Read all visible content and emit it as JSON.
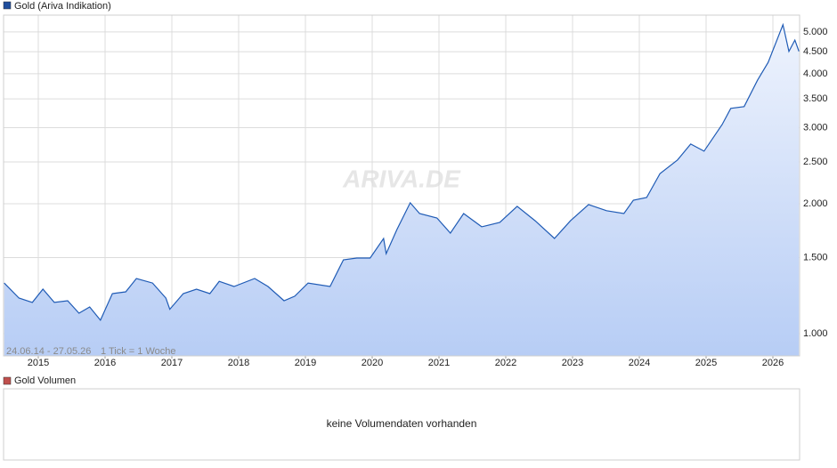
{
  "chart_data": {
    "type": "line",
    "log_scale": true,
    "grid": true,
    "legend": "Gold (Ariva Indikation)",
    "legend_color": "#1f4e9c",
    "watermark": "ARIVA.DE",
    "range_note": "24.06.14 - 27.05.26",
    "tick_note": "1 Tick = 1 Woche",
    "x": [
      2014.49,
      2014.71,
      2014.91,
      2015.07,
      2015.24,
      2015.44,
      2015.61,
      2015.77,
      2015.93,
      2016.11,
      2016.31,
      2016.47,
      2016.71,
      2016.91,
      2016.97,
      2017.17,
      2017.37,
      2017.57,
      2017.71,
      2017.93,
      2018.24,
      2018.44,
      2018.68,
      2018.84,
      2019.04,
      2019.37,
      2019.57,
      2019.77,
      2019.97,
      2020.17,
      2020.21,
      2020.37,
      2020.57,
      2020.71,
      2020.97,
      2021.17,
      2021.37,
      2021.64,
      2021.91,
      2022.17,
      2022.44,
      2022.73,
      2022.97,
      2023.24,
      2023.51,
      2023.77,
      2023.91,
      2024.11,
      2024.31,
      2024.57,
      2024.77,
      2024.97,
      2025.24,
      2025.37,
      2025.57,
      2025.77,
      2025.93,
      2026.15,
      2026.24,
      2026.33,
      2026.39
    ],
    "series": [
      {
        "name": "Gold",
        "color": "#1f5bb5",
        "values": [
          1310,
          1209,
          1181,
          1268,
          1181,
          1192,
          1115,
          1153,
          1074,
          1238,
          1250,
          1342,
          1310,
          1209,
          1139,
          1238,
          1268,
          1238,
          1322,
          1286,
          1342,
          1286,
          1192,
          1221,
          1310,
          1286,
          1483,
          1497,
          1497,
          1662,
          1532,
          1742,
          2010,
          1898,
          1853,
          1710,
          1898,
          1768,
          1810,
          1972,
          1826,
          1662,
          1826,
          1991,
          1927,
          1898,
          2038,
          2067,
          2349,
          2523,
          2750,
          2647,
          3051,
          3326,
          3358,
          3865,
          4251,
          5196,
          4506,
          4786,
          4506
        ]
      }
    ],
    "xlim": [
      2014.48,
      2026.4
    ],
    "xticks": [
      2015,
      2016,
      2017,
      2018,
      2019,
      2020,
      2021,
      2022,
      2023,
      2024,
      2025,
      2026
    ],
    "ylim": [
      888,
      5470
    ],
    "yticks": [
      {
        "value": 1000,
        "label": "1.000"
      },
      {
        "value": 1500,
        "label": "1.500"
      },
      {
        "value": 2000,
        "label": "2.000"
      },
      {
        "value": 2500,
        "label": "2.500"
      },
      {
        "value": 3000,
        "label": "3.000"
      },
      {
        "value": 3500,
        "label": "3.500"
      },
      {
        "value": 4000,
        "label": "4.000"
      },
      {
        "value": 4500,
        "label": "4.500"
      },
      {
        "value": 5000,
        "label": "5.000"
      }
    ],
    "volume_legend": "Gold Volumen",
    "volume_legend_color": "#c0504d",
    "volume_message": "keine Volumendaten vorhanden"
  }
}
